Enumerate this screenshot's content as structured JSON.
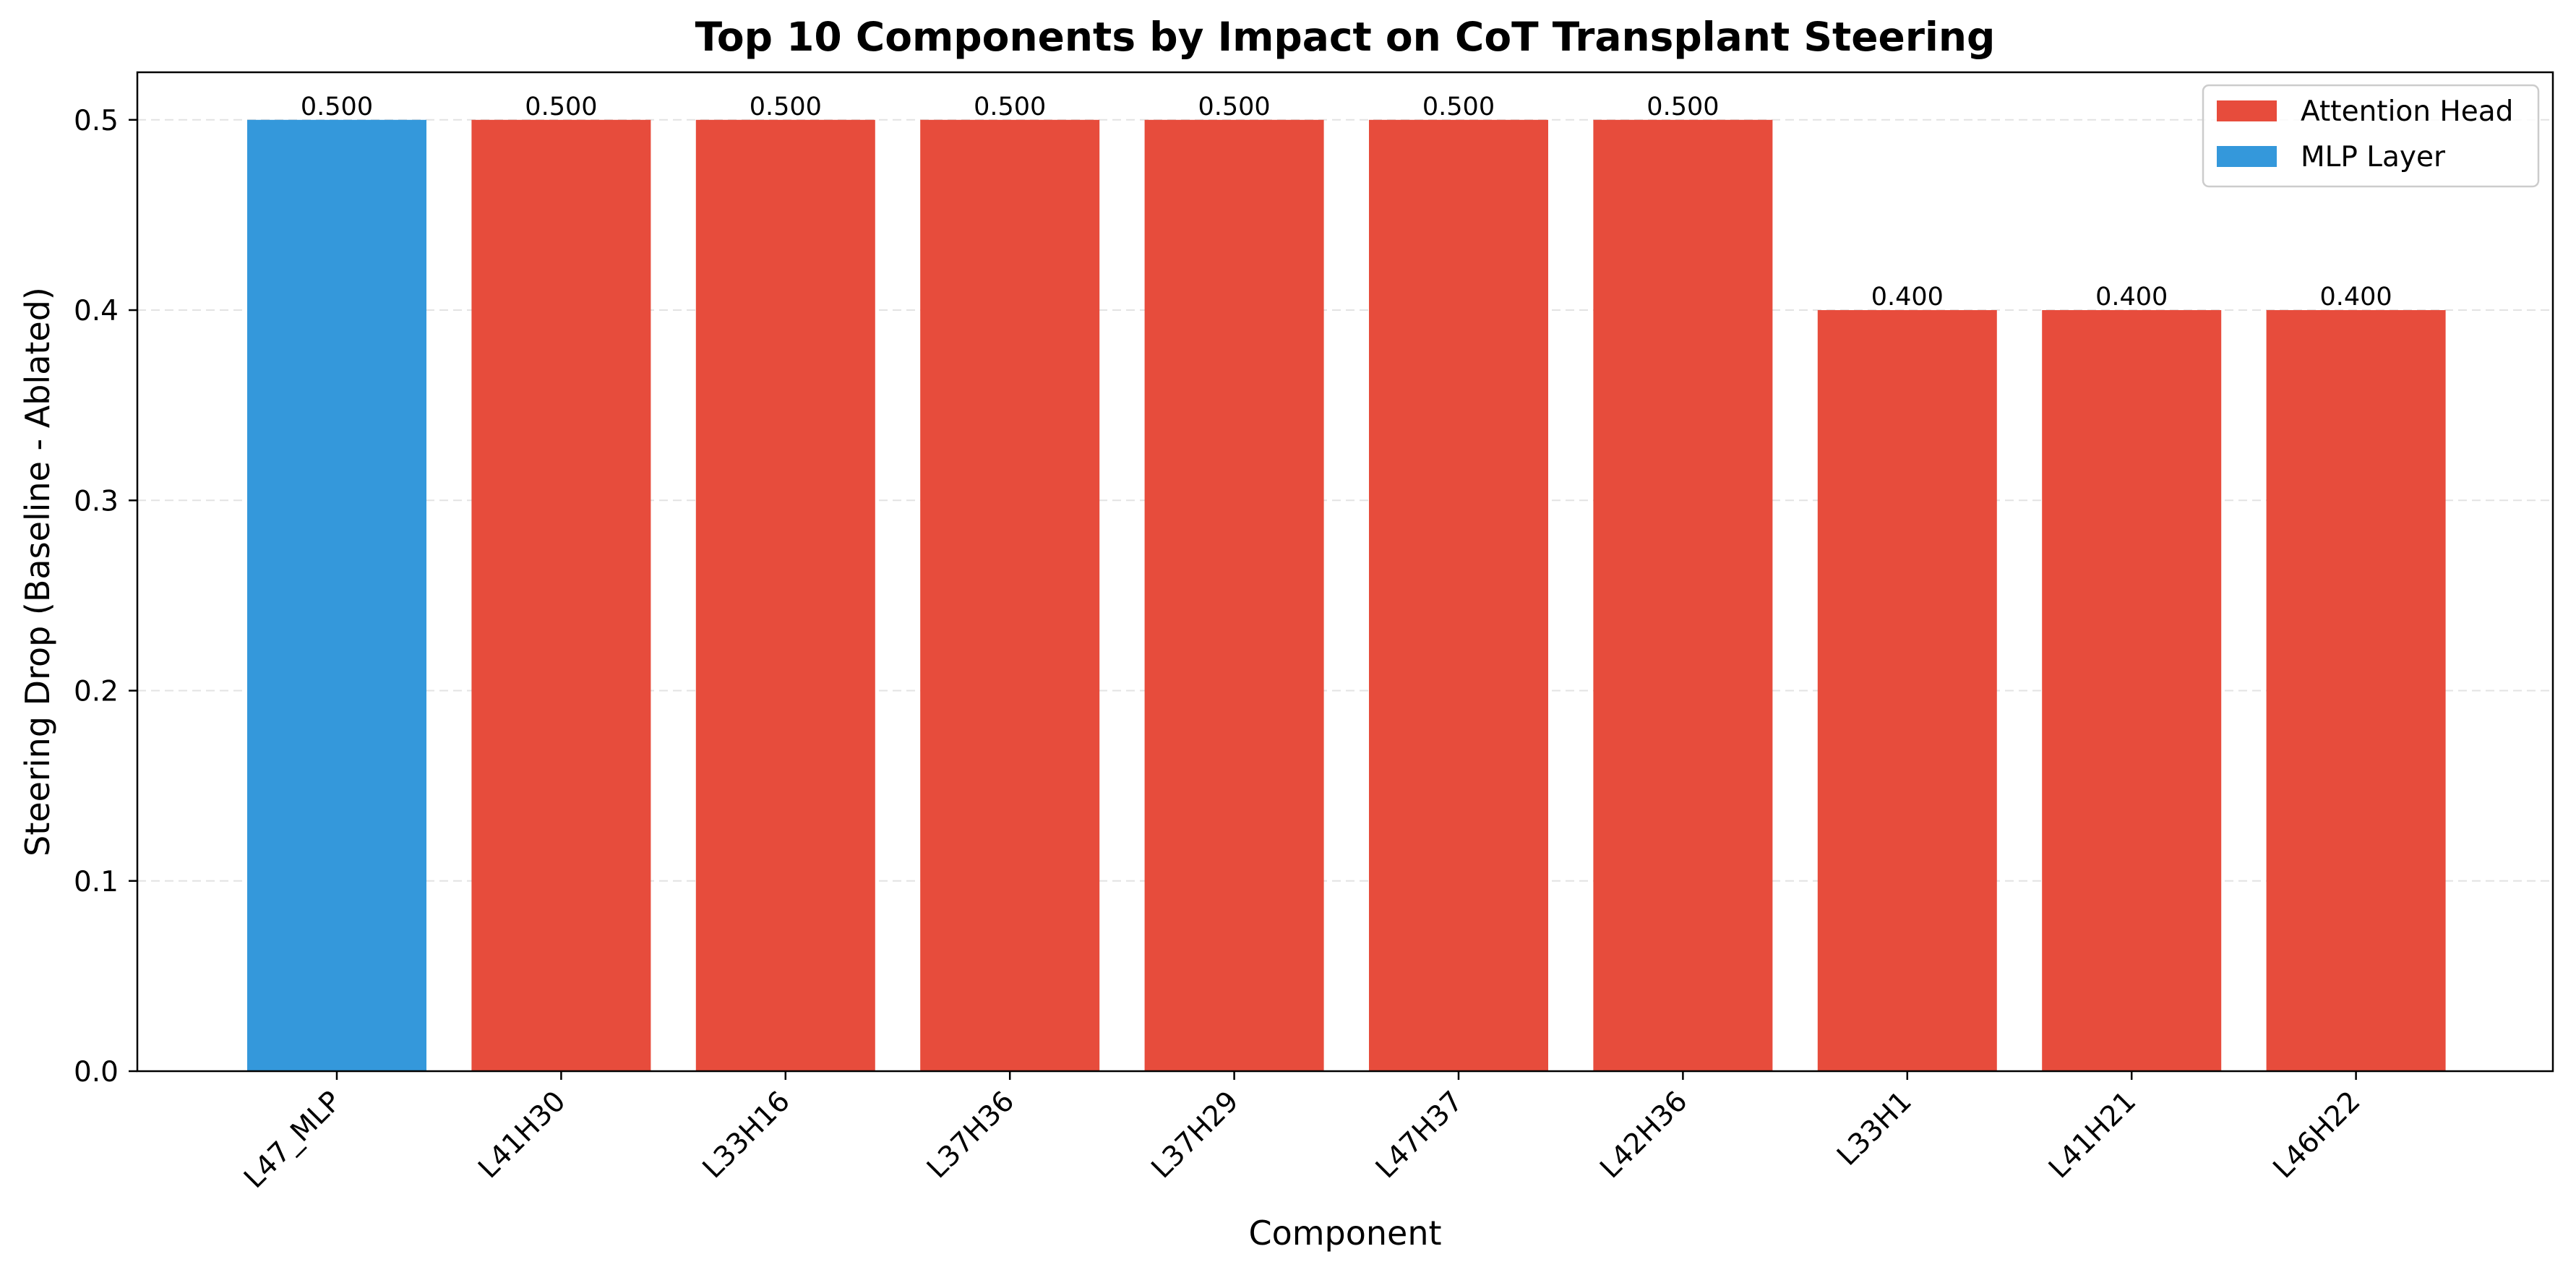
{
  "chart_data": {
    "type": "bar",
    "title": "Top 10 Components by Impact on CoT Transplant Steering",
    "xlabel": "Component",
    "ylabel": "Steering Drop (Baseline - Ablated)",
    "ylim": [
      0,
      0.525
    ],
    "yticks": [
      0.0,
      0.1,
      0.2,
      0.3,
      0.4,
      0.5
    ],
    "ytick_labels": [
      "0.0",
      "0.1",
      "0.2",
      "0.3",
      "0.4",
      "0.5"
    ],
    "grid": "horizontal dashed",
    "legend_position": "top-right",
    "categories": [
      "L47_MLP",
      "L41H30",
      "L33H16",
      "L37H36",
      "L37H29",
      "L47H37",
      "L42H36",
      "L33H1",
      "L41H21",
      "L46H22"
    ],
    "values": [
      0.5,
      0.5,
      0.5,
      0.5,
      0.5,
      0.5,
      0.5,
      0.4,
      0.4,
      0.4
    ],
    "value_labels": [
      "0.500",
      "0.500",
      "0.500",
      "0.500",
      "0.500",
      "0.500",
      "0.500",
      "0.400",
      "0.400",
      "0.400"
    ],
    "bar_types": [
      "MLP Layer",
      "Attention Head",
      "Attention Head",
      "Attention Head",
      "Attention Head",
      "Attention Head",
      "Attention Head",
      "Attention Head",
      "Attention Head",
      "Attention Head"
    ],
    "legend": [
      {
        "label": "Attention Head",
        "color": "#e74c3c"
      },
      {
        "label": "MLP Layer",
        "color": "#3498db"
      }
    ]
  }
}
